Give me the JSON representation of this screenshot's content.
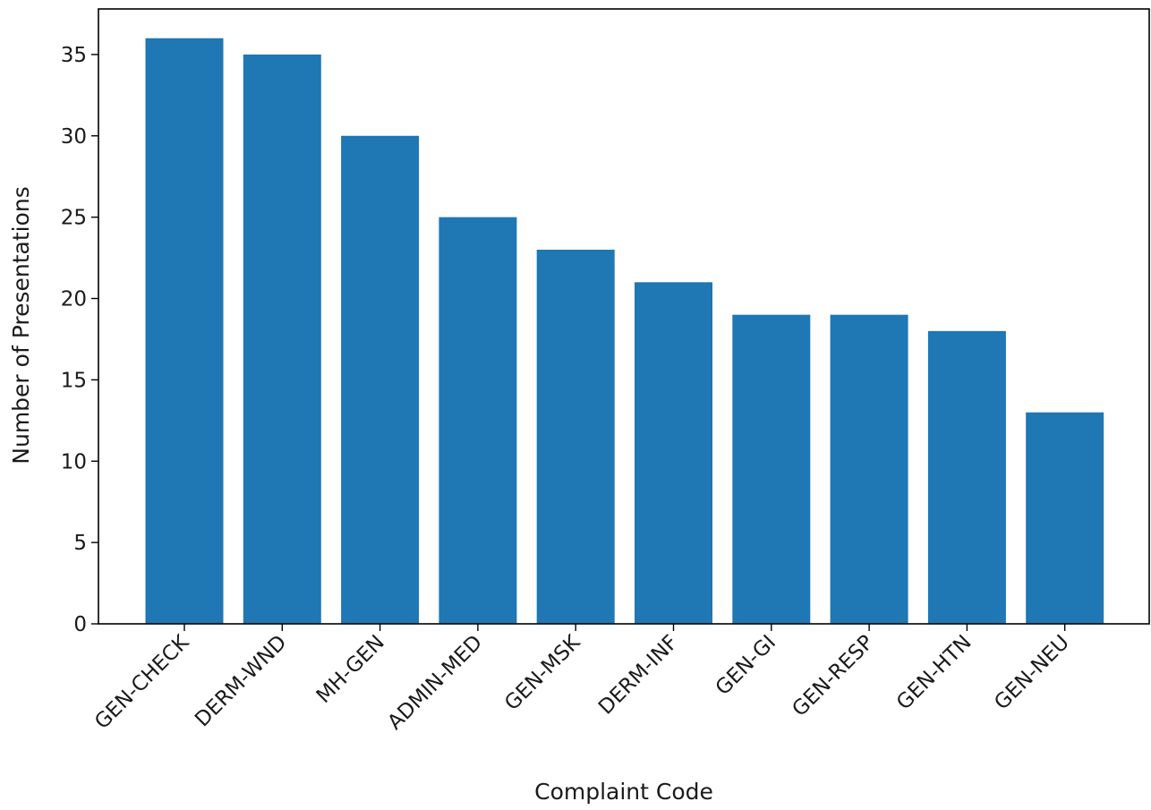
{
  "chart_data": {
    "type": "bar",
    "title": "",
    "xlabel": "Complaint Code",
    "ylabel": "Number of Presentations",
    "categories": [
      "GEN-CHECK",
      "DERM-WND",
      "MH-GEN",
      "ADMIN-MED",
      "GEN-MSK",
      "DERM-INF",
      "GEN-GI",
      "GEN-RESP",
      "GEN-HTN",
      "GEN-NEU"
    ],
    "values": [
      36,
      35,
      30,
      25,
      23,
      21,
      19,
      19,
      18,
      13
    ],
    "ylim": [
      0,
      37.8
    ],
    "yticks": [
      0,
      5,
      10,
      15,
      20,
      25,
      30,
      35
    ],
    "bar_color": "#1f77b4",
    "grid": false,
    "legend": "none"
  }
}
